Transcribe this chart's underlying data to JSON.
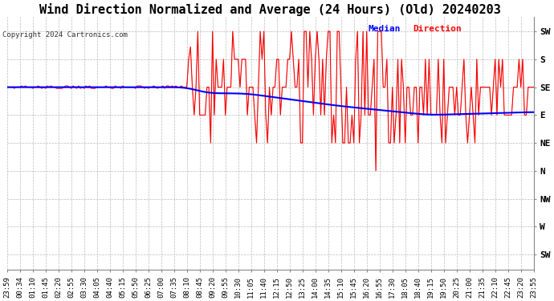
{
  "title": "Wind Direction Normalized and Average (24 Hours) (Old) 20240203",
  "copyright": "Copyright 2024 Cartronics.com",
  "legend_blue": "Median",
  "legend_red": "Direction",
  "background_color": "#ffffff",
  "plot_bg_color": "#ffffff",
  "grid_color": "#aaaaaa",
  "y_labels": [
    "SW",
    "S",
    "SE",
    "E",
    "NE",
    "N",
    "NW",
    "W",
    "SW"
  ],
  "y_values": [
    225,
    180,
    135,
    90,
    45,
    0,
    -45,
    -90,
    -135
  ],
  "y_min": -160,
  "y_max": 248,
  "red_line_color": "#ff0000",
  "blue_line_color": "#0000ff",
  "black_line_color": "#000000",
  "title_fontsize": 11,
  "tick_label_fontsize": 8,
  "x_tick_labels": [
    "23:59",
    "00:34",
    "01:10",
    "01:45",
    "02:20",
    "02:55",
    "03:30",
    "04:05",
    "04:40",
    "05:15",
    "05:50",
    "06:25",
    "07:00",
    "07:35",
    "08:10",
    "08:45",
    "09:20",
    "09:55",
    "10:30",
    "11:05",
    "11:40",
    "12:15",
    "12:50",
    "13:25",
    "14:00",
    "14:35",
    "15:10",
    "15:45",
    "16:20",
    "16:55",
    "17:30",
    "18:05",
    "18:40",
    "19:15",
    "19:50",
    "20:25",
    "21:00",
    "21:35",
    "22:10",
    "22:45",
    "23:20",
    "23:55"
  ],
  "n_points": 288
}
